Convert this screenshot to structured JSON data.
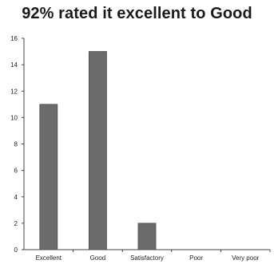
{
  "chart_data": {
    "type": "bar",
    "title": "92% rated it excellent to Good",
    "categories": [
      "Excellent",
      "Good",
      "Satisfactory",
      "Poor",
      "Very poor"
    ],
    "values": [
      11,
      15,
      2,
      0,
      0
    ],
    "xlabel": "",
    "ylabel": "",
    "ylim": [
      0,
      16
    ],
    "yticks": [
      "0",
      "2",
      "4",
      "6",
      "8",
      "10",
      "12",
      "14",
      "16"
    ],
    "grid": false,
    "legend": "none",
    "colors": {
      "bar": "#6b6b6b",
      "bar_edge": "#4a4a4a",
      "axis": "#444444"
    }
  }
}
